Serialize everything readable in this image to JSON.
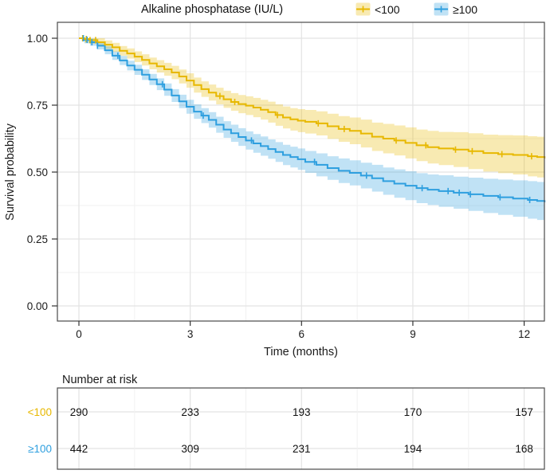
{
  "chart_data": {
    "type": "line",
    "subtype": "kaplan-meier-step",
    "legend": {
      "title": "Alkaline phosphatase (IU/L)",
      "position": "top"
    },
    "xlabel": "Time (months)",
    "ylabel": "Survival probability",
    "xticks": [
      0,
      3,
      6,
      9,
      12
    ],
    "xminor": [
      1.5,
      4.5,
      7.5,
      10.5
    ],
    "xlim": [
      -0.58,
      12.54
    ],
    "yticks": [
      0,
      0.25,
      0.5,
      0.75,
      1.0
    ],
    "ytick_labels": [
      "0.00",
      "0.25",
      "0.50",
      "0.75",
      "1.00"
    ],
    "yminor": [
      0.125,
      0.375,
      0.625,
      0.875
    ],
    "ylim": [
      -0.056,
      1.056
    ],
    "grid": "major+minor",
    "series": [
      {
        "name": "<100",
        "color": "#E7B800",
        "band_opacity": 0.3,
        "t": [
          0,
          0.15,
          0.3,
          0.5,
          0.7,
          0.9,
          1.1,
          1.3,
          1.5,
          1.7,
          1.9,
          2.1,
          2.3,
          2.5,
          2.7,
          2.9,
          3.1,
          3.3,
          3.5,
          3.7,
          3.9,
          4.1,
          4.3,
          4.5,
          4.7,
          4.9,
          5.1,
          5.3,
          5.5,
          5.7,
          5.9,
          6.1,
          6.4,
          6.7,
          7.0,
          7.3,
          7.6,
          7.9,
          8.2,
          8.5,
          8.8,
          9.1,
          9.4,
          9.7,
          10.1,
          10.5,
          10.9,
          11.3,
          11.7,
          12.1,
          12.35,
          12.55
        ],
        "s": [
          1.0,
          0.997,
          0.993,
          0.985,
          0.976,
          0.966,
          0.953,
          0.943,
          0.931,
          0.919,
          0.906,
          0.895,
          0.884,
          0.872,
          0.857,
          0.842,
          0.825,
          0.81,
          0.797,
          0.784,
          0.772,
          0.762,
          0.754,
          0.748,
          0.741,
          0.733,
          0.724,
          0.713,
          0.704,
          0.697,
          0.692,
          0.688,
          0.682,
          0.671,
          0.661,
          0.654,
          0.644,
          0.632,
          0.625,
          0.618,
          0.609,
          0.6,
          0.593,
          0.588,
          0.584,
          0.578,
          0.571,
          0.567,
          0.564,
          0.559,
          0.556,
          0.554
        ],
        "lo": [
          1.0,
          0.984,
          0.979,
          0.97,
          0.96,
          0.949,
          0.935,
          0.924,
          0.911,
          0.898,
          0.884,
          0.872,
          0.86,
          0.847,
          0.831,
          0.815,
          0.797,
          0.781,
          0.767,
          0.753,
          0.74,
          0.729,
          0.72,
          0.713,
          0.705,
          0.696,
          0.685,
          0.673,
          0.663,
          0.655,
          0.649,
          0.644,
          0.637,
          0.624,
          0.613,
          0.604,
          0.592,
          0.579,
          0.57,
          0.562,
          0.551,
          0.541,
          0.532,
          0.526,
          0.519,
          0.511,
          0.502,
          0.496,
          0.491,
          0.484,
          0.48,
          0.477
        ],
        "hi": [
          1.0,
          1.0,
          1.0,
          1.0,
          0.992,
          0.983,
          0.971,
          0.962,
          0.951,
          0.94,
          0.928,
          0.918,
          0.908,
          0.897,
          0.883,
          0.869,
          0.853,
          0.839,
          0.827,
          0.815,
          0.804,
          0.795,
          0.788,
          0.783,
          0.777,
          0.77,
          0.763,
          0.753,
          0.745,
          0.739,
          0.735,
          0.732,
          0.727,
          0.718,
          0.709,
          0.704,
          0.696,
          0.685,
          0.68,
          0.674,
          0.667,
          0.659,
          0.654,
          0.65,
          0.649,
          0.645,
          0.64,
          0.638,
          0.637,
          0.634,
          0.632,
          0.631
        ],
        "censor_t": [
          0.1,
          0.2,
          0.3,
          0.45,
          3.8,
          4.2,
          5.35,
          6.45,
          7.15,
          8.55,
          9.35,
          10.15,
          10.6,
          11.4,
          12.2
        ]
      },
      {
        "name": "≥100",
        "color": "#2E9FDF",
        "band_opacity": 0.3,
        "t": [
          0,
          0.15,
          0.3,
          0.5,
          0.7,
          0.9,
          1.1,
          1.3,
          1.5,
          1.7,
          1.9,
          2.1,
          2.3,
          2.5,
          2.7,
          2.9,
          3.1,
          3.3,
          3.5,
          3.7,
          3.9,
          4.1,
          4.3,
          4.5,
          4.7,
          4.9,
          5.1,
          5.3,
          5.5,
          5.7,
          5.9,
          6.1,
          6.4,
          6.7,
          7.0,
          7.3,
          7.6,
          7.9,
          8.2,
          8.5,
          8.8,
          9.1,
          9.4,
          9.7,
          10.1,
          10.5,
          10.9,
          11.3,
          11.7,
          12.1,
          12.35,
          12.55
        ],
        "s": [
          1.0,
          0.994,
          0.985,
          0.972,
          0.955,
          0.935,
          0.917,
          0.898,
          0.882,
          0.864,
          0.846,
          0.828,
          0.808,
          0.786,
          0.764,
          0.744,
          0.726,
          0.711,
          0.695,
          0.677,
          0.659,
          0.645,
          0.631,
          0.618,
          0.607,
          0.597,
          0.586,
          0.575,
          0.564,
          0.556,
          0.548,
          0.538,
          0.527,
          0.515,
          0.505,
          0.497,
          0.487,
          0.477,
          0.466,
          0.457,
          0.449,
          0.44,
          0.434,
          0.429,
          0.423,
          0.417,
          0.411,
          0.406,
          0.401,
          0.396,
          0.392,
          0.39
        ],
        "lo": [
          1.0,
          0.981,
          0.972,
          0.958,
          0.94,
          0.919,
          0.9,
          0.88,
          0.863,
          0.844,
          0.825,
          0.806,
          0.785,
          0.762,
          0.739,
          0.718,
          0.699,
          0.683,
          0.666,
          0.647,
          0.628,
          0.613,
          0.598,
          0.584,
          0.572,
          0.561,
          0.55,
          0.538,
          0.526,
          0.517,
          0.508,
          0.497,
          0.484,
          0.471,
          0.459,
          0.45,
          0.439,
          0.427,
          0.415,
          0.404,
          0.395,
          0.384,
          0.377,
          0.37,
          0.363,
          0.355,
          0.347,
          0.34,
          0.333,
          0.326,
          0.321,
          0.318
        ],
        "hi": [
          1.0,
          1.0,
          0.998,
          0.986,
          0.97,
          0.951,
          0.934,
          0.916,
          0.901,
          0.884,
          0.867,
          0.85,
          0.831,
          0.81,
          0.789,
          0.77,
          0.753,
          0.739,
          0.724,
          0.707,
          0.69,
          0.677,
          0.664,
          0.652,
          0.642,
          0.633,
          0.622,
          0.612,
          0.602,
          0.595,
          0.588,
          0.579,
          0.57,
          0.559,
          0.551,
          0.544,
          0.535,
          0.527,
          0.517,
          0.51,
          0.503,
          0.496,
          0.491,
          0.488,
          0.483,
          0.479,
          0.475,
          0.472,
          0.469,
          0.466,
          0.463,
          0.462
        ],
        "censor_t": [
          0.12,
          0.22,
          0.35,
          0.5,
          1.05,
          2.25,
          3.35,
          4.65,
          6.35,
          7.75,
          9.25,
          9.95,
          10.25,
          10.55,
          11.35,
          12.15
        ]
      }
    ],
    "risk_table": {
      "title": "Number at risk",
      "times": [
        0,
        3,
        6,
        9,
        12
      ],
      "rows": [
        {
          "label": "<100",
          "color": "#E7B800",
          "counts": [
            290,
            233,
            193,
            170,
            157
          ]
        },
        {
          "label": "≥100",
          "color": "#2E9FDF",
          "counts": [
            442,
            309,
            231,
            194,
            168
          ]
        }
      ]
    }
  }
}
